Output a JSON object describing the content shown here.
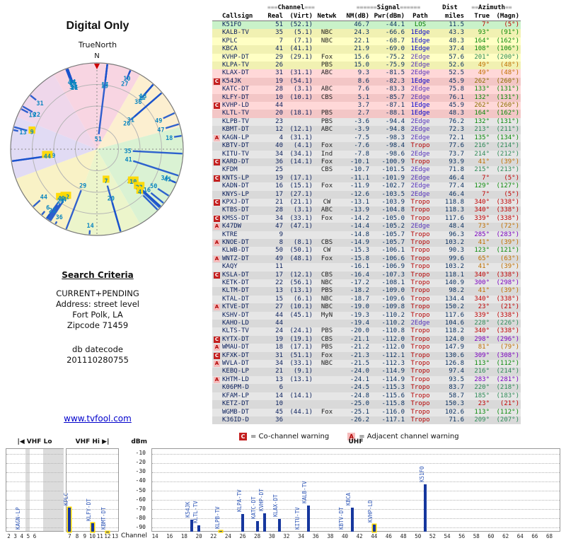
{
  "left_panel": {
    "title": "Digital Only",
    "compass_label": "TrueNorth",
    "north": "N",
    "search": {
      "heading": "Search Criteria",
      "lines": [
        "CURRENT+PENDING",
        "Address: street level",
        "Fort Polk, LA",
        "Zipcode 71459"
      ],
      "datecode_label": "db datecode",
      "datecode_value": "201110280755"
    },
    "site_link": "www.tvfool.com"
  },
  "table": {
    "groups": {
      "channel": "Channel",
      "signal": "Signal",
      "dist": "Dist",
      "azimuth": "Azimuth"
    },
    "decos": {
      "channel": "≡≡≡",
      "signal": "≡≡≡≡≡≡",
      "azimuth": "≡≡"
    },
    "columns": {
      "callsign": "Callsign",
      "real": "Real",
      "virt": "(Virt)",
      "netwk": "Netwk",
      "nm": "NM(dB)",
      "pwr": "Pwr(dBm)",
      "path": "Path",
      "miles": "miles",
      "true": "True",
      "magn": "(Magn)"
    }
  },
  "legend": {
    "co_symbol": "C",
    "co_text": "= Co-channel warning",
    "adj_symbol": "A",
    "adj_text": "= Adjacent channel warning"
  },
  "chart": {
    "y_label": "dBm",
    "x_label": "Channel",
    "y_ticks": [
      -10,
      -20,
      -30,
      -40,
      -50,
      -60,
      -70,
      -80,
      -90
    ],
    "y_range": [
      -5,
      -95
    ],
    "bands": [
      {
        "label": "|◀ VHF Lo",
        "ch_min": 2,
        "ch_max": 6,
        "ticks": [
          2,
          3,
          4,
          5,
          6
        ]
      },
      {
        "label": "VHF Hi ▶|",
        "ch_min": 7,
        "ch_max": 13,
        "ticks": [
          7,
          8,
          9,
          10,
          11,
          12,
          13
        ]
      },
      {
        "label": "UHF",
        "ch_min": 14,
        "ch_max": 69,
        "ticks": [
          14,
          16,
          18,
          20,
          22,
          24,
          26,
          28,
          30,
          32,
          34,
          36,
          38,
          40,
          42,
          44,
          46,
          48,
          50,
          52,
          54,
          56,
          58,
          60,
          62,
          64,
          66,
          68
        ]
      }
    ],
    "label_power_threshold": -99
  },
  "style": {
    "bar_blue": "#16379e",
    "highlight_yellow": "#ffd900",
    "link_blue": "#0000cc",
    "warn_co_bg": "#c42020",
    "warn_adj_bg": "#f6bcbc",
    "row_green": "#c9f2c9",
    "row_yellow": "#ffffc4",
    "row_pink": "#ffd8d8",
    "row_gray": "#e6e6e6",
    "radar_spoke": "#1a52cc",
    "radar_label": "#0a85c0",
    "radar_sectors": [
      {
        "from": 330,
        "to": 30,
        "color": "#f8d5e2"
      },
      {
        "from": 30,
        "to": 75,
        "color": "#fcefd0"
      },
      {
        "from": 75,
        "to": 150,
        "color": "#daf2d3"
      },
      {
        "from": 150,
        "to": 200,
        "color": "#ecf5cb"
      },
      {
        "from": 200,
        "to": 250,
        "color": "#f9f2c6"
      },
      {
        "from": 250,
        "to": 292,
        "color": "#e1dbf4"
      },
      {
        "from": 292,
        "to": 330,
        "color": "#efd7eb"
      }
    ],
    "path_colors": {
      "LOS": "#007a00",
      "1Edge": "#0000cc",
      "2Edge": "#5533bb",
      "Tropo": "#b50000"
    },
    "azimuth_colors": [
      {
        "max": 28,
        "c": "#c00000"
      },
      {
        "max": 88,
        "c": "#c07000"
      },
      {
        "max": 172,
        "c": "#0a8a0a"
      },
      {
        "max": 232,
        "c": "#2e8b57"
      },
      {
        "max": 270,
        "c": "#8a7000"
      },
      {
        "max": 326,
        "c": "#7a00c0"
      },
      {
        "max": 361,
        "c": "#c00000"
      }
    ]
  },
  "chart_data": {
    "type": "table",
    "title": "Digital Only",
    "radar_mapping": {
      "angle_field": "az",
      "strength_field": "nm"
    },
    "bar_mapping": {
      "x_field": "real",
      "y_field": "pwr"
    },
    "stations": [
      {
        "cs": "K51FO",
        "real": 51,
        "virt": 52.1,
        "net": "",
        "nm": 46.7,
        "pwr": -44.1,
        "path": "LOS",
        "mi": 11.5,
        "az": 7,
        "mag": 5
      },
      {
        "cs": "KALB-TV",
        "real": 35,
        "virt": 5.1,
        "net": "NBC",
        "nm": 24.3,
        "pwr": -66.6,
        "path": "1Edge",
        "mi": 43.3,
        "az": 93,
        "mag": 91
      },
      {
        "cs": "KPLC",
        "real": 7,
        "virt": 7.1,
        "net": "NBC",
        "nm": 22.1,
        "pwr": -68.7,
        "path": "1Edge",
        "mi": 48.3,
        "az": 164,
        "mag": 162,
        "hl": true
      },
      {
        "cs": "KBCA",
        "real": 41,
        "virt": 41.1,
        "net": "",
        "nm": 21.9,
        "pwr": -69.0,
        "path": "1Edge",
        "mi": 37.4,
        "az": 108,
        "mag": 106
      },
      {
        "cs": "KVHP-DT",
        "real": 29,
        "virt": 29.1,
        "net": "Fox",
        "nm": 15.6,
        "pwr": -75.2,
        "path": "2Edge",
        "mi": 57.6,
        "az": 201,
        "mag": 200
      },
      {
        "cs": "KLPA-TV",
        "real": 26,
        "virt": null,
        "net": "PBS",
        "nm": 15.0,
        "pwr": -75.9,
        "path": "2Edge",
        "mi": 52.6,
        "az": 49,
        "mag": 48
      },
      {
        "cs": "KLAX-DT",
        "real": 31,
        "virt": 31.1,
        "net": "ABC",
        "nm": 9.3,
        "pwr": -81.5,
        "path": "2Edge",
        "mi": 52.5,
        "az": 49,
        "mag": 48
      },
      {
        "cs": "K54JK",
        "real": 19,
        "virt": 54.1,
        "net": "",
        "nm": 8.6,
        "pwr": -82.3,
        "path": "1Edge",
        "mi": 45.9,
        "az": 262,
        "mag": 260,
        "warn": "C"
      },
      {
        "cs": "KATC-DT",
        "real": 28,
        "virt": 3.1,
        "net": "ABC",
        "nm": 7.6,
        "pwr": -83.3,
        "path": "2Edge",
        "mi": 75.8,
        "az": 133,
        "mag": 131
      },
      {
        "cs": "KLFY-DT",
        "real": 10,
        "virt": 10.1,
        "net": "CBS",
        "nm": 5.1,
        "pwr": -85.7,
        "path": "2Edge",
        "mi": 76.1,
        "az": 132,
        "mag": 131,
        "hl": true
      },
      {
        "cs": "KVHP-LD",
        "real": 44,
        "virt": null,
        "net": "",
        "nm": 3.7,
        "pwr": -87.1,
        "path": "1Edge",
        "mi": 45.9,
        "az": 262,
        "mag": 260,
        "warn": "C",
        "hl": true
      },
      {
        "cs": "KLTL-TV",
        "real": 20,
        "virt": 18.1,
        "net": "PBS",
        "nm": 2.7,
        "pwr": -88.1,
        "path": "1Edge",
        "mi": 48.3,
        "az": 164,
        "mag": 162
      },
      {
        "cs": "KLPB-TV",
        "real": 23,
        "virt": null,
        "net": "PBS",
        "nm": -3.6,
        "pwr": -94.4,
        "path": "2Edge",
        "mi": 76.2,
        "az": 132,
        "mag": 131,
        "hl": true
      },
      {
        "cs": "KBMT-DT",
        "real": 12,
        "virt": 12.1,
        "net": "ABC",
        "nm": -3.9,
        "pwr": -94.8,
        "path": "2Edge",
        "mi": 72.3,
        "az": 213,
        "mag": 211,
        "hl": true
      },
      {
        "cs": "KAGN-LP",
        "real": 4,
        "virt": 31.1,
        "net": "",
        "nm": -7.5,
        "pwr": -98.3,
        "path": "2Edge",
        "mi": 72.1,
        "az": 135,
        "mag": 134,
        "warn": "A",
        "hl": true
      },
      {
        "cs": "KBTV-DT",
        "real": 40,
        "virt": 4.1,
        "net": "Fox",
        "nm": -7.6,
        "pwr": -98.4,
        "path": "Tropo",
        "mi": 77.6,
        "az": 216,
        "mag": 214,
        "hl": true
      },
      {
        "cs": "KITU-TV",
        "real": 34,
        "virt": 34.1,
        "net": "Ind",
        "nm": -7.8,
        "pwr": -98.6,
        "path": "2Edge",
        "mi": 73.7,
        "az": 214,
        "mag": 212
      },
      {
        "cs": "KARD-DT",
        "real": 36,
        "virt": 14.1,
        "net": "Fox",
        "nm": -10.1,
        "pwr": -100.9,
        "path": "Tropo",
        "mi": 93.9,
        "az": 41,
        "mag": 39,
        "warn": "C"
      },
      {
        "cs": "KFDM",
        "real": 25,
        "virt": null,
        "net": "CBS",
        "nm": -10.7,
        "pwr": -101.5,
        "path": "2Edge",
        "mi": 71.8,
        "az": 215,
        "mag": 213
      },
      {
        "cs": "KNTS-LP",
        "real": 19,
        "virt": 17.1,
        "net": "",
        "nm": -11.1,
        "pwr": -101.9,
        "path": "2Edge",
        "mi": 46.4,
        "az": 7,
        "mag": 5,
        "warn": "C"
      },
      {
        "cs": "KADN-DT",
        "real": 16,
        "virt": 15.1,
        "net": "Fox",
        "nm": -11.9,
        "pwr": -102.7,
        "path": "2Edge",
        "mi": 77.4,
        "az": 129,
        "mag": 127
      },
      {
        "cs": "KNYS-LP",
        "real": 17,
        "virt": 27.1,
        "net": "",
        "nm": -12.6,
        "pwr": -103.5,
        "path": "2Edge",
        "mi": 46.4,
        "az": 7,
        "mag": 5
      },
      {
        "cs": "KPXJ-DT",
        "real": 21,
        "virt": 21.1,
        "net": "CW",
        "nm": -13.1,
        "pwr": -103.9,
        "path": "Tropo",
        "mi": 118.8,
        "az": 340,
        "mag": 338,
        "warn": "C"
      },
      {
        "cs": "KTBS-DT",
        "real": 28,
        "virt": 3.1,
        "net": "ABC",
        "nm": -13.9,
        "pwr": -104.8,
        "path": "Tropo",
        "mi": 118.3,
        "az": 340,
        "mag": 338
      },
      {
        "cs": "KMSS-DT",
        "real": 34,
        "virt": 33.1,
        "net": "Fox",
        "nm": -14.2,
        "pwr": -105.0,
        "path": "Tropo",
        "mi": 117.6,
        "az": 339,
        "mag": 338,
        "warn": "C"
      },
      {
        "cs": "K47DW",
        "real": 47,
        "virt": 47.1,
        "net": "",
        "nm": -14.4,
        "pwr": -105.2,
        "path": "2Edge",
        "mi": 48.4,
        "az": 73,
        "mag": 72,
        "warn": "A"
      },
      {
        "cs": "KTRE",
        "real": 9,
        "virt": null,
        "net": "",
        "nm": -14.8,
        "pwr": -105.7,
        "path": "Tropo",
        "mi": 96.3,
        "az": 285,
        "mag": 283,
        "hl": true
      },
      {
        "cs": "KNOE-DT",
        "real": 8,
        "virt": 8.1,
        "net": "CBS",
        "nm": -14.9,
        "pwr": -105.7,
        "path": "Tropo",
        "mi": 103.2,
        "az": 41,
        "mag": 39,
        "warn": "A"
      },
      {
        "cs": "KLWB-DT",
        "real": 50,
        "virt": 50.1,
        "net": "CW",
        "nm": -15.3,
        "pwr": -106.1,
        "path": "Tropo",
        "mi": 90.3,
        "az": 123,
        "mag": 121
      },
      {
        "cs": "WNTZ-DT",
        "real": 49,
        "virt": 48.1,
        "net": "Fox",
        "nm": -15.8,
        "pwr": -106.6,
        "path": "Tropo",
        "mi": 99.6,
        "az": 65,
        "mag": 63,
        "warn": "A"
      },
      {
        "cs": "KAQY",
        "real": 11,
        "virt": null,
        "net": "",
        "nm": -16.1,
        "pwr": -106.9,
        "path": "Tropo",
        "mi": 103.2,
        "az": 41,
        "mag": 39
      },
      {
        "cs": "KSLA-DT",
        "real": 17,
        "virt": 12.1,
        "net": "CBS",
        "nm": -16.4,
        "pwr": -107.3,
        "path": "Tropo",
        "mi": 118.1,
        "az": 340,
        "mag": 338,
        "warn": "C"
      },
      {
        "cs": "KETK-DT",
        "real": 22,
        "virt": 56.1,
        "net": "NBC",
        "nm": -17.2,
        "pwr": -108.1,
        "path": "Tropo",
        "mi": 140.9,
        "az": 300,
        "mag": 298
      },
      {
        "cs": "KLTM-DT",
        "real": 13,
        "virt": 13.1,
        "net": "PBS",
        "nm": -18.2,
        "pwr": -109.0,
        "path": "Tropo",
        "mi": 98.2,
        "az": 41,
        "mag": 39
      },
      {
        "cs": "KTAL-DT",
        "real": 15,
        "virt": 6.1,
        "net": "NBC",
        "nm": -18.7,
        "pwr": -109.6,
        "path": "Tropo",
        "mi": 134.4,
        "az": 340,
        "mag": 338
      },
      {
        "cs": "KTVE-DT",
        "real": 27,
        "virt": 10.1,
        "net": "NBC",
        "nm": -19.0,
        "pwr": -109.8,
        "path": "Tropo",
        "mi": 150.2,
        "az": 23,
        "mag": 21,
        "warn": "A"
      },
      {
        "cs": "KSHV-DT",
        "real": 44,
        "virt": 45.1,
        "net": "MyN",
        "nm": -19.3,
        "pwr": -110.2,
        "path": "Tropo",
        "mi": 117.6,
        "az": 339,
        "mag": 338
      },
      {
        "cs": "KAHO-LD",
        "real": 44,
        "virt": null,
        "net": "",
        "nm": -19.4,
        "pwr": -110.2,
        "path": "2Edge",
        "mi": 104.6,
        "az": 228,
        "mag": 226
      },
      {
        "cs": "KLTS-TV",
        "real": 24,
        "virt": 24.1,
        "net": "PBS",
        "nm": -20.0,
        "pwr": -110.8,
        "path": "Tropo",
        "mi": 118.2,
        "az": 340,
        "mag": 338
      },
      {
        "cs": "KYTX-DT",
        "real": 19,
        "virt": 19.1,
        "net": "CBS",
        "nm": -21.1,
        "pwr": -112.0,
        "path": "Tropo",
        "mi": 124.0,
        "az": 298,
        "mag": 296,
        "warn": "C"
      },
      {
        "cs": "WMAU-DT",
        "real": 18,
        "virt": 17.1,
        "net": "PBS",
        "nm": -21.2,
        "pwr": -112.0,
        "path": "Tropo",
        "mi": 147.9,
        "az": 81,
        "mag": 79,
        "warn": "A"
      },
      {
        "cs": "KFXK-DT",
        "real": 31,
        "virt": 51.1,
        "net": "Fox",
        "nm": -21.3,
        "pwr": -112.1,
        "path": "Tropo",
        "mi": 130.6,
        "az": 309,
        "mag": 308,
        "warn": "C"
      },
      {
        "cs": "WVLA-DT",
        "real": 34,
        "virt": 33.1,
        "net": "NBC",
        "nm": -21.5,
        "pwr": -112.3,
        "path": "Tropo",
        "mi": 126.8,
        "az": 113,
        "mag": 112,
        "warn": "A"
      },
      {
        "cs": "KEBQ-LP",
        "real": 21,
        "virt": 9.1,
        "net": "",
        "nm": -24.0,
        "pwr": -114.9,
        "path": "Tropo",
        "mi": 97.4,
        "az": 216,
        "mag": 214
      },
      {
        "cs": "KHTM-LD",
        "real": 13,
        "virt": 13.1,
        "net": "",
        "nm": -24.1,
        "pwr": -114.9,
        "path": "Tropo",
        "mi": 93.5,
        "az": 283,
        "mag": 281,
        "warn": "A"
      },
      {
        "cs": "K06PM-D",
        "real": 6,
        "virt": null,
        "net": "",
        "nm": -24.5,
        "pwr": -115.3,
        "path": "Tropo",
        "mi": 83.7,
        "az": 220,
        "mag": 218
      },
      {
        "cs": "KFAM-LP",
        "real": 14,
        "virt": 14.1,
        "net": "",
        "nm": -24.8,
        "pwr": -115.6,
        "path": "Tropo",
        "mi": 58.7,
        "az": 185,
        "mag": 183
      },
      {
        "cs": "KETZ-DT",
        "real": 10,
        "virt": null,
        "net": "",
        "nm": -25.0,
        "pwr": -115.8,
        "path": "Tropo",
        "mi": 150.3,
        "az": 23,
        "mag": 21
      },
      {
        "cs": "WGMB-DT",
        "real": 45,
        "virt": 44.1,
        "net": "Fox",
        "nm": -25.1,
        "pwr": -116.0,
        "path": "Tropo",
        "mi": 102.6,
        "az": 113,
        "mag": 112
      },
      {
        "cs": "K36ID-D",
        "real": 36,
        "virt": null,
        "net": "",
        "nm": -26.2,
        "pwr": -117.1,
        "path": "Tropo",
        "mi": 71.6,
        "az": 209,
        "mag": 207
      }
    ]
  }
}
